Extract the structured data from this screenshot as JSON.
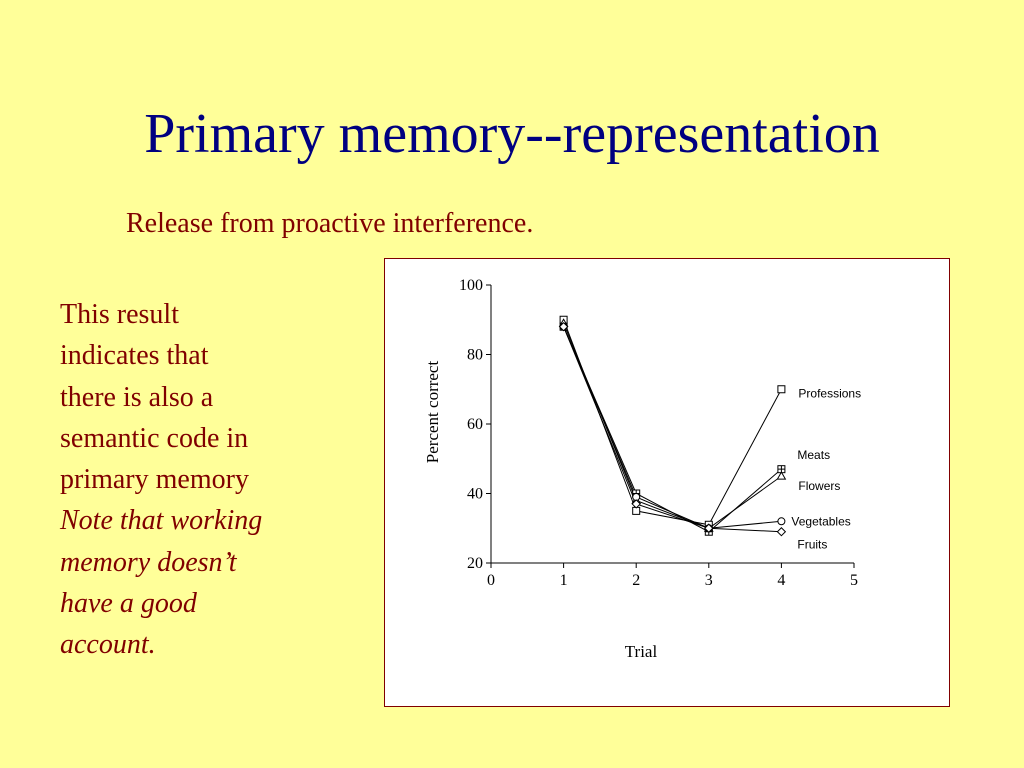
{
  "slide": {
    "title": "Primary memory--representation",
    "subtitle": "Release from proactive interference.",
    "body_plain": "This result indicates that there is also a semantic code in primary memory ",
    "body_note": "Note that working memory doesn’t have a good account.",
    "colors": {
      "background": "#FFFF99",
      "title": "#000080",
      "text": "#800000",
      "chart_border": "#800000"
    }
  },
  "chart_data": {
    "type": "line",
    "xlabel": "Trial",
    "ylabel": "Percent correct",
    "xlim": [
      0,
      5
    ],
    "ylim": [
      20,
      100
    ],
    "xticks": [
      0,
      1,
      2,
      3,
      4,
      5
    ],
    "yticks": [
      20,
      40,
      60,
      80,
      100
    ],
    "grid": false,
    "legend": "inline labels at trial 4",
    "x": [
      1,
      2,
      3,
      4
    ],
    "series": [
      {
        "name": "Professions",
        "marker": "square",
        "values": [
          90,
          35,
          31,
          70
        ]
      },
      {
        "name": "Meats",
        "marker": "square-plus",
        "values": [
          88,
          40,
          29,
          47
        ]
      },
      {
        "name": "Flowers",
        "marker": "triangle",
        "values": [
          89,
          38,
          30,
          45
        ]
      },
      {
        "name": "Vegetables",
        "marker": "circle",
        "values": [
          88,
          39,
          30,
          32
        ]
      },
      {
        "name": "Fruits",
        "marker": "diamond",
        "values": [
          88,
          37,
          30,
          29
        ]
      }
    ]
  }
}
